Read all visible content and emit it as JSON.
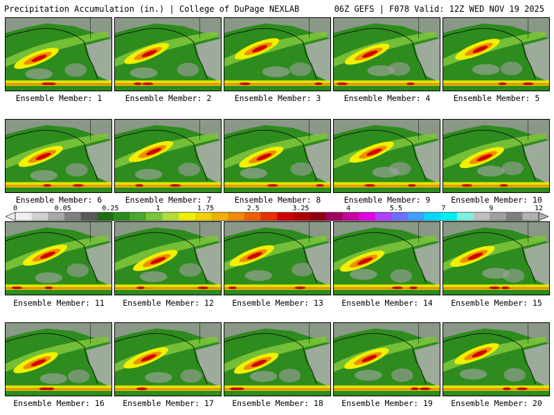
{
  "header": {
    "title_left": "Precipitation Accumulation (in.) | College of DuPage NEXLAB",
    "title_right": "06Z GEFS | F078 Valid: 12Z WED NOV 19 2025"
  },
  "members": [
    {
      "label": "Ensemble Member: 1"
    },
    {
      "label": "Ensemble Member: 2"
    },
    {
      "label": "Ensemble Member: 3"
    },
    {
      "label": "Ensemble Member: 4"
    },
    {
      "label": "Ensemble Member: 5"
    },
    {
      "label": "Ensemble Member: 6"
    },
    {
      "label": "Ensemble Member: 7"
    },
    {
      "label": "Ensemble Member: 8"
    },
    {
      "label": "Ensemble Member: 9"
    },
    {
      "label": "Ensemble Member: 10"
    },
    {
      "label": "Ensemble Member: 11"
    },
    {
      "label": "Ensemble Member: 12"
    },
    {
      "label": "Ensemble Member: 13"
    },
    {
      "label": "Ensemble Member: 14"
    },
    {
      "label": "Ensemble Member: 15"
    },
    {
      "label": "Ensemble Member: 16"
    },
    {
      "label": "Ensemble Member: 17"
    },
    {
      "label": "Ensemble Member: 18"
    },
    {
      "label": "Ensemble Member: 19"
    },
    {
      "label": "Ensemble Member: 20"
    }
  ],
  "colorbar": {
    "labels": [
      "0",
      "0.05",
      "0.25",
      "1",
      "1.75",
      "2.5",
      "3.25",
      "4",
      "5.5",
      "7",
      "9",
      "12"
    ],
    "colors": [
      "#f0f0f0",
      "#d0d0d0",
      "#a8a8a8",
      "#808080",
      "#5a5a5a",
      "#1e6e14",
      "#2e8b1e",
      "#4aa82a",
      "#7cc43a",
      "#b4dc3c",
      "#f0f000",
      "#f0d000",
      "#f0b000",
      "#f08c00",
      "#f06000",
      "#e83000",
      "#d00000",
      "#b00000",
      "#900010",
      "#a00060",
      "#c800a0",
      "#e000e0",
      "#b040ff",
      "#7070ff",
      "#40a0ff",
      "#00d8ff",
      "#00f0f0",
      "#80f0e0",
      "#c0c0c0",
      "#a0a0a0",
      "#808080",
      "#b0b0b0"
    ]
  }
}
